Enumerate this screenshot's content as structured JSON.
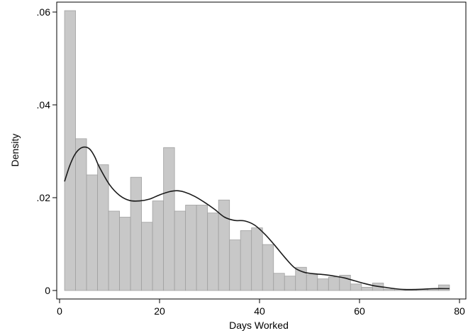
{
  "chart_data": {
    "type": "bar",
    "subtype": "histogram-with-kernel-density",
    "xlabel": "Days Worked",
    "ylabel": "Density",
    "xlim": [
      0,
      80
    ],
    "ylim": [
      0,
      0.06
    ],
    "x_ticks": [
      0,
      20,
      40,
      60,
      80
    ],
    "x_tick_labels": [
      "0",
      "20",
      "40",
      "60",
      "80"
    ],
    "y_ticks": [
      0,
      0.02,
      0.04,
      0.06
    ],
    "y_tick_labels": [
      "0",
      ".02",
      ".04",
      ".06"
    ],
    "grid": false,
    "legend": "none",
    "bar_color": "#c8c8c8",
    "bar_edge_color": "#a0a0a0",
    "line_color": "#1a1a1a",
    "bins": {
      "start": 1,
      "width": 2.2,
      "values": [
        0.0603,
        0.0327,
        0.0249,
        0.0271,
        0.0171,
        0.0158,
        0.0244,
        0.0147,
        0.0193,
        0.0308,
        0.0171,
        0.0184,
        0.0184,
        0.0167,
        0.0195,
        0.0109,
        0.0129,
        0.0135,
        0.0099,
        0.0037,
        0.0031,
        0.005,
        0.0034,
        0.0025,
        0.0029,
        0.0033,
        0.0014,
        0.0007,
        0.0016,
        0.0003,
        0.0003,
        0.0003,
        0.0003,
        0.0003,
        0.0012
      ]
    },
    "density_curve": {
      "x": [
        1,
        2,
        3,
        4,
        5,
        6,
        7,
        8,
        10,
        12,
        14,
        16,
        18,
        20,
        22,
        23.5,
        25,
        27,
        29,
        31,
        33,
        35,
        37,
        39,
        41,
        43,
        45,
        47,
        49,
        51,
        53,
        55,
        57,
        59,
        61,
        63,
        65,
        67,
        69,
        71,
        73,
        75,
        78
      ],
      "y": [
        0.0235,
        0.0268,
        0.0292,
        0.0305,
        0.0309,
        0.0305,
        0.0289,
        0.0265,
        0.0228,
        0.0205,
        0.0194,
        0.0193,
        0.0197,
        0.0206,
        0.0213,
        0.0215,
        0.0212,
        0.0203,
        0.019,
        0.0175,
        0.0158,
        0.0151,
        0.015,
        0.0141,
        0.0122,
        0.0098,
        0.0072,
        0.0049,
        0.0039,
        0.0036,
        0.0034,
        0.0031,
        0.0027,
        0.0021,
        0.0015,
        0.001,
        0.0007,
        0.0004,
        0.0002,
        0.0002,
        0.0003,
        0.0004,
        0.0004
      ]
    }
  }
}
